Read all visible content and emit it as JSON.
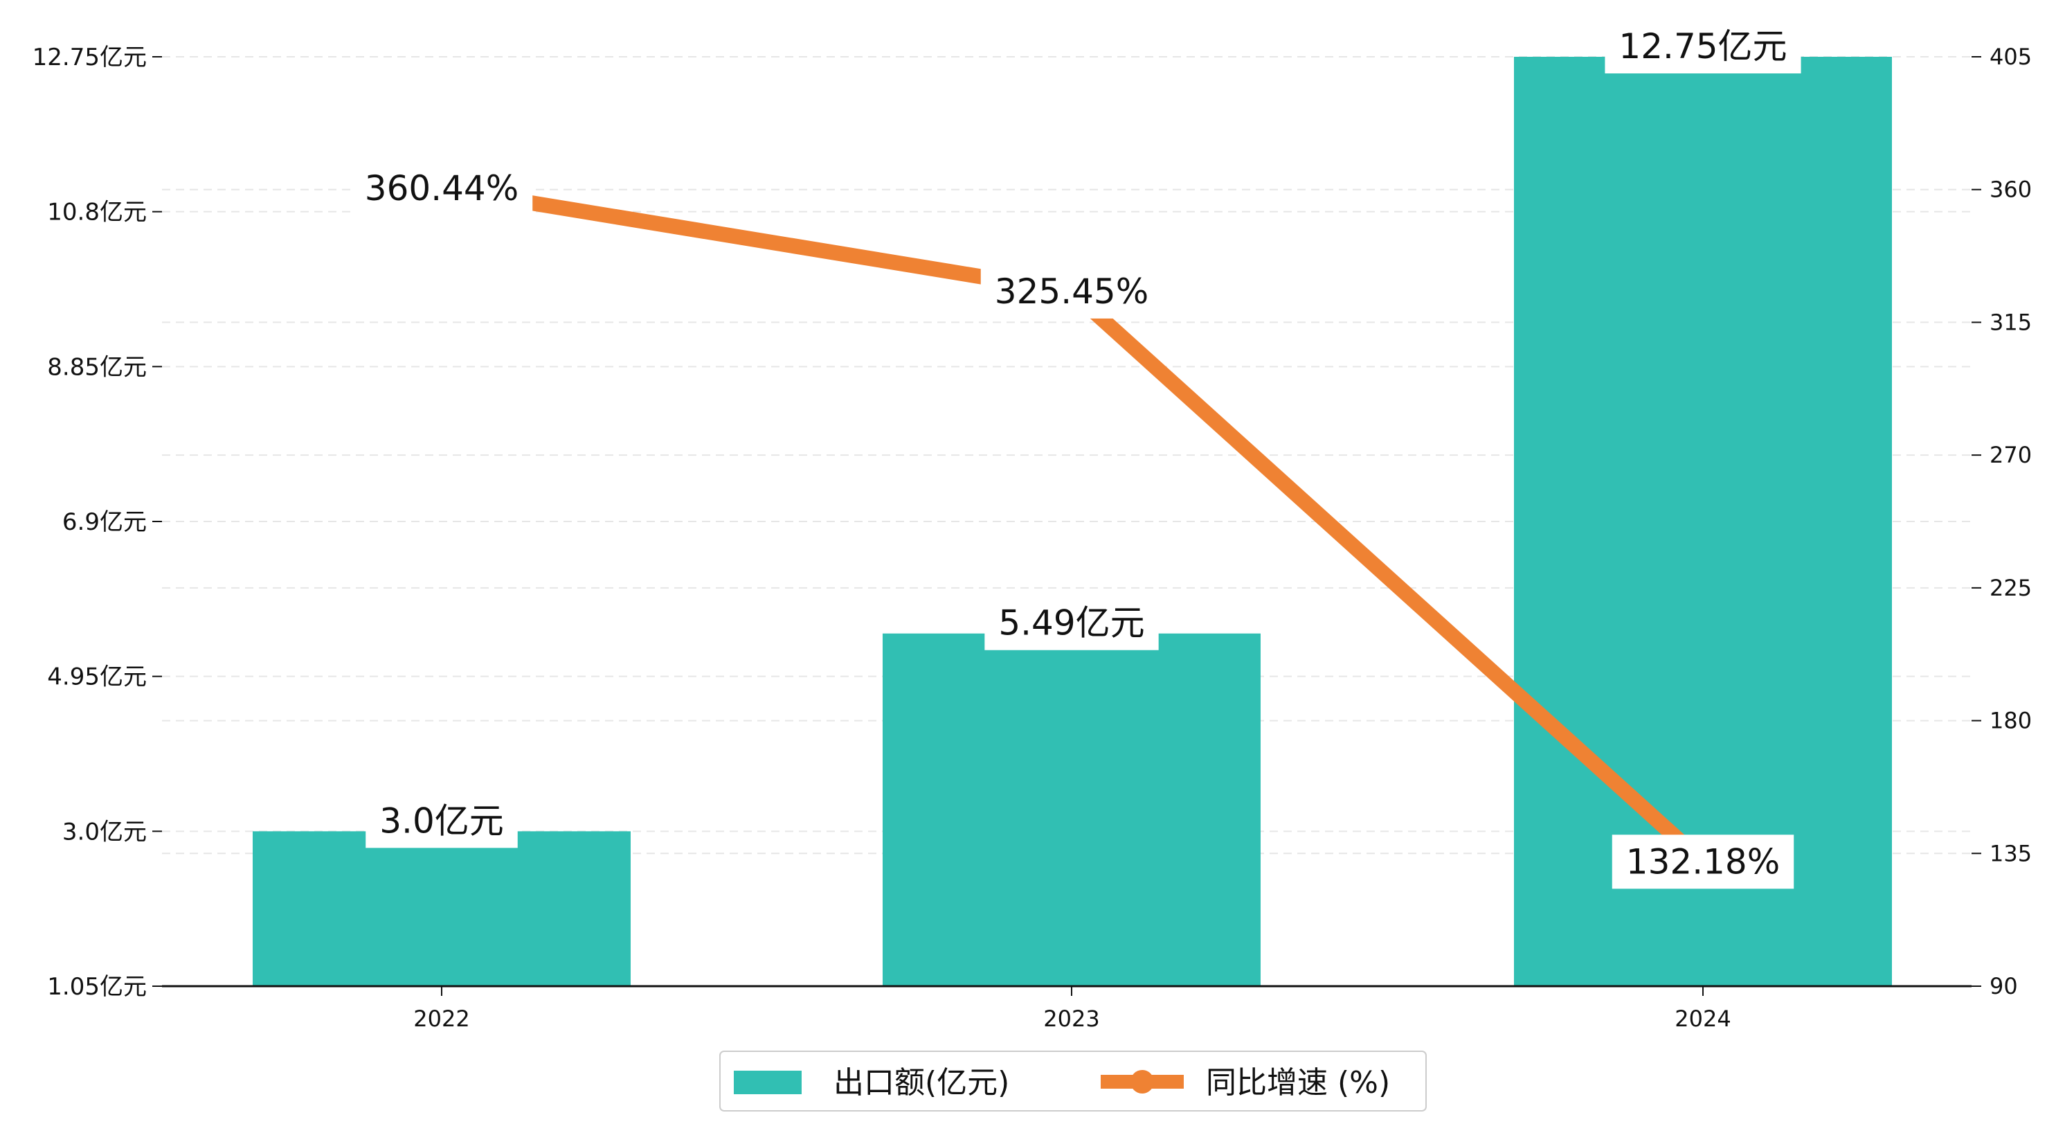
{
  "colors": {
    "bar": "#31bfb3",
    "line": "#ef8233",
    "grid": "#e6e6e6",
    "axis": "#111111",
    "label_bg": "#ffffff"
  },
  "legend": {
    "bar_label": "出口额(亿元)",
    "line_label": "同比增速 (%)",
    "position": "bottom-center"
  },
  "chart_data": {
    "type": "bar",
    "categories": [
      "2022",
      "2023",
      "2024"
    ],
    "series": [
      {
        "name": "出口额(亿元)",
        "type": "bar",
        "axis": "left",
        "values": [
          3.0,
          5.49,
          12.75
        ],
        "labels": [
          "3.0亿元",
          "5.49亿元",
          "12.75亿元"
        ]
      },
      {
        "name": "同比增速 (%)",
        "type": "line",
        "axis": "right",
        "values": [
          360.44,
          325.45,
          132.18
        ],
        "labels": [
          "360.44%",
          "325.45%",
          "132.18%"
        ]
      }
    ],
    "left_axis": {
      "ylim": [
        1.05,
        12.75
      ],
      "ticks": [
        1.05,
        3.0,
        4.95,
        6.9,
        8.85,
        10.8,
        12.75
      ],
      "tick_labels": [
        "1.05亿元",
        "3.0亿元",
        "4.95亿元",
        "6.9亿元",
        "8.85亿元",
        "10.8亿元",
        "12.75亿元"
      ]
    },
    "right_axis": {
      "ylim": [
        90,
        405
      ],
      "ticks": [
        90,
        135,
        180,
        225,
        270,
        315,
        360,
        405
      ],
      "tick_labels": [
        "90",
        "135",
        "180",
        "225",
        "270",
        "315",
        "360",
        "405"
      ]
    },
    "grid": true,
    "legend_position": "bottom-center"
  }
}
